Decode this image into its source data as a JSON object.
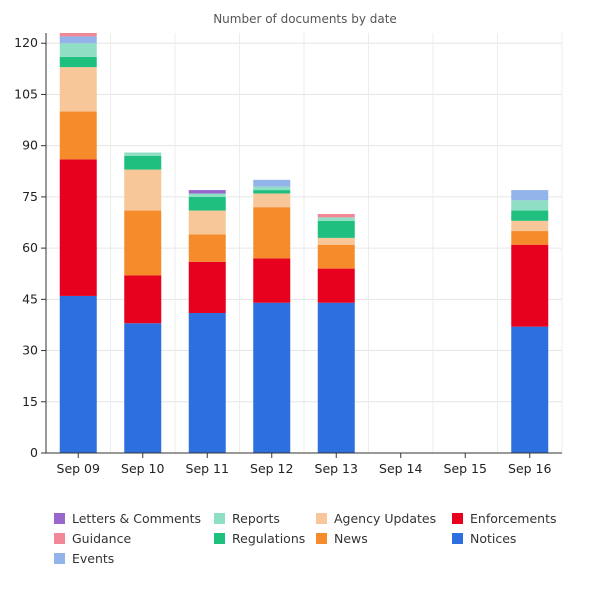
{
  "chart_data": {
    "type": "bar",
    "stacked": true,
    "title": "Number of documents by date",
    "xlabel": "",
    "ylabel": "",
    "ylim": [
      0,
      123
    ],
    "yticks": [
      0,
      15,
      30,
      45,
      60,
      75,
      90,
      105,
      120
    ],
    "grid": true,
    "legend_position": "bottom",
    "categories": [
      "Sep 09",
      "Sep 10",
      "Sep 11",
      "Sep 12",
      "Sep 13",
      "Sep 14",
      "Sep 15",
      "Sep 16"
    ],
    "series": [
      {
        "name": "Notices",
        "color": "#2e6fdf",
        "values": [
          46,
          38,
          41,
          44,
          44,
          0,
          0,
          37
        ]
      },
      {
        "name": "Enforcements",
        "color": "#e8001f",
        "values": [
          40,
          14,
          15,
          13,
          10,
          0,
          0,
          24
        ]
      },
      {
        "name": "News",
        "color": "#f58b2a",
        "values": [
          14,
          19,
          8,
          15,
          7,
          0,
          0,
          4
        ]
      },
      {
        "name": "Agency Updates",
        "color": "#f8c799",
        "values": [
          13,
          12,
          7,
          4,
          2,
          0,
          0,
          3
        ]
      },
      {
        "name": "Regulations",
        "color": "#1fbf80",
        "values": [
          3,
          4,
          4,
          1,
          5,
          0,
          0,
          3
        ]
      },
      {
        "name": "Reports",
        "color": "#8fdfc4",
        "values": [
          4,
          1,
          1,
          1,
          1,
          0,
          0,
          3
        ]
      },
      {
        "name": "Events",
        "color": "#93b4ea",
        "values": [
          2,
          0,
          0,
          2,
          0,
          0,
          0,
          3
        ]
      },
      {
        "name": "Guidance",
        "color": "#f28797",
        "values": [
          1,
          0,
          0,
          0,
          1,
          0,
          0,
          0
        ]
      },
      {
        "name": "Letters & Comments",
        "color": "#9966cc",
        "values": [
          0,
          0,
          1,
          0,
          0,
          0,
          0,
          0
        ]
      }
    ],
    "legend_order": [
      "Letters & Comments",
      "Reports",
      "Agency Updates",
      "Enforcements",
      "Guidance",
      "Regulations",
      "News",
      "Notices",
      "Events"
    ]
  }
}
